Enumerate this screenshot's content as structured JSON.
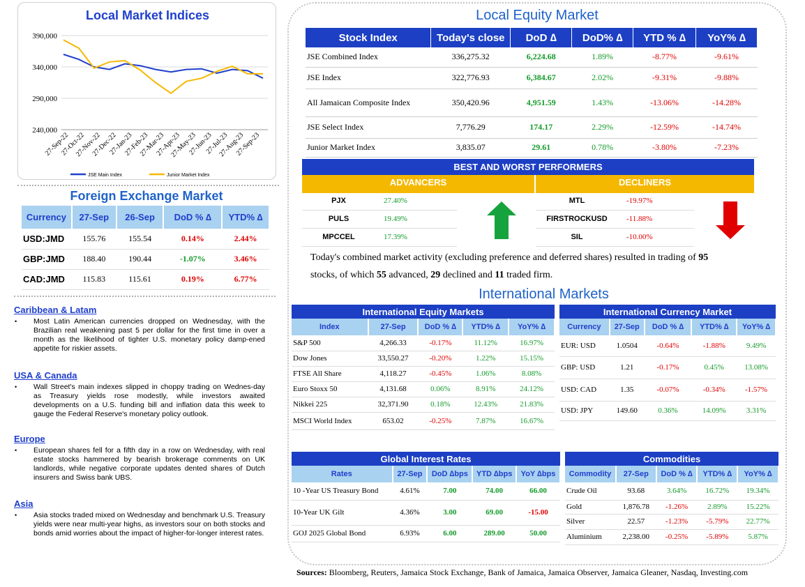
{
  "chart_data": {
    "type": "line",
    "title": "Local Market Indices",
    "x_ticks": [
      "27-Sep-22",
      "27-Oct-22",
      "27-Nov-22",
      "27-Dec-22",
      "27-Jan-23",
      "27-Feb-23",
      "27-Mar-23",
      "27-Apr-23",
      "27-May-23",
      "27-Jun-23",
      "27-Jul-23",
      "27-Aug-23",
      "27-Sep-23"
    ],
    "y_ticks": [
      "390,000",
      "340,000",
      "290,000",
      "240,000"
    ],
    "ylim": [
      240000,
      390000
    ],
    "legend_position": "bottom",
    "series": [
      {
        "name": "JSE Main Index",
        "color": "#1f3fcc",
        "values": [
          360000,
          352000,
          340000,
          336000,
          345000,
          342000,
          336000,
          332000,
          336000,
          337000,
          330000,
          336000,
          334000,
          322000
        ]
      },
      {
        "name": "Junior Market Index",
        "color": "#f5b800",
        "values": [
          383000,
          370000,
          338000,
          348000,
          350000,
          335000,
          315000,
          298000,
          317000,
          322000,
          333000,
          341000,
          329000,
          329000
        ]
      }
    ]
  },
  "fx": {
    "title": "Foreign Exchange Market",
    "headers": [
      "Currency",
      "27-Sep",
      "26-Sep",
      "DoD % ∆",
      "YTD% ∆"
    ],
    "rows": [
      [
        "USD:JMD",
        "155.76",
        "155.54",
        "0.14%",
        "2.44%"
      ],
      [
        "GBP:JMD",
        "188.40",
        "190.44",
        "-1.07%",
        "3.46%"
      ],
      [
        "CAD:JMD",
        "115.83",
        "115.61",
        "0.19%",
        "6.77%"
      ]
    ]
  },
  "news": [
    {
      "heading": "Caribbean & Latam",
      "text": "Most Latin American currencies dropped on Wednesday, with the Brazilian real weakening past 5 per dollar for the first time in over a month as the likelihood of tighter U.S. monetary policy damp-ened appetite for riskier assets."
    },
    {
      "heading": "USA & Canada",
      "text": "Wall Street's main indexes slipped in choppy trading on Wednes-day as Treasury yields rose modestly, while investors awaited developments on a U.S. funding bill and inflation data this week to gauge the Federal Reserve's monetary policy outlook."
    },
    {
      "heading": "Europe",
      "text": "European shares fell for a fifth day in a row on Wednesday, with real estate stocks hammered by bearish brokerage comments on UK landlords, while negative corporate updates dented shares of Dutch insurers and Swiss bank UBS."
    },
    {
      "heading": "Asia",
      "text": "Asia stocks traded mixed on Wednesday and benchmark U.S. Treasury yields were near multi-year highs, as investors sour on both stocks and bonds amid worries about the impact of higher-for-longer interest rates."
    }
  ],
  "equity": {
    "title": "Local Equity Market",
    "headers": [
      "Stock Index",
      "Today's close",
      "DoD  ∆",
      "DoD% ∆",
      "YTD % ∆",
      "YoY% ∆"
    ],
    "rows": [
      [
        "JSE Combined Index",
        "336,275.32",
        "6,224.68",
        "1.89%",
        "-8.77%",
        "-9.61%"
      ],
      [
        "JSE Index",
        "322,776.93",
        "6,384.67",
        "2.02%",
        "-9.31%",
        "-9.88%"
      ],
      [
        "All Jamaican Composite Index",
        "350,420.96",
        "4,951.59",
        "1.43%",
        "-13.06%",
        "-14.28%"
      ],
      [
        "JSE Select Index",
        "7,776.29",
        "174.17",
        "2.29%",
        "-12.59%",
        "-14.74%"
      ],
      [
        "Junior Market Index",
        "3,835.07",
        "29.61",
        "0.78%",
        "-3.80%",
        "-7.23%"
      ]
    ]
  },
  "performers": {
    "title": "BEST AND WORST PERFORMERS",
    "adv_label": "ADVANCERS",
    "dec_label": "DECLINERS",
    "advancers": [
      [
        "PJX",
        "27.40%"
      ],
      [
        "PULS",
        "19.49%"
      ],
      [
        "MPCCEL",
        "17.39%"
      ]
    ],
    "decliners": [
      [
        "MTL",
        "-19.97%"
      ],
      [
        "FIRSTROCKUSD",
        "-11.88%"
      ],
      [
        "SIL",
        "-10.00%"
      ]
    ]
  },
  "summary": {
    "p1": "Today's combined market activity (excluding preference and deferred shares) resulted in trading of ",
    "n_total": "95",
    "p2": "stocks, of which ",
    "n_adv": "55",
    "p3": " advanced, ",
    "n_dec": "29",
    "p4": " declined and ",
    "n_firm": "11",
    "p5": " traded firm."
  },
  "intl": {
    "title": "International Markets",
    "equity": {
      "title": "International Equity Markets",
      "headers": [
        "Index",
        "27-Sep",
        "DoD % ∆",
        "YTD% ∆",
        "YoY% ∆"
      ],
      "rows": [
        [
          "S&P 500",
          "4,266.33",
          "-0.17%",
          "11.12%",
          "16.97%"
        ],
        [
          "Dow Jones",
          "33,550.27",
          "-0.20%",
          "1.22%",
          "15.15%"
        ],
        [
          "FTSE All Share",
          "4,118.27",
          "-0.45%",
          "1.06%",
          "8.08%"
        ],
        [
          "Euro Stoxx 50",
          "4,131.68",
          "0.06%",
          "8.91%",
          "24.12%"
        ],
        [
          "Nikkei 225",
          "32,371.90",
          "0.18%",
          "12.43%",
          "21.83%"
        ],
        [
          "MSCI World Index",
          "653.02",
          "-0.25%",
          "7.87%",
          "16.67%"
        ]
      ]
    },
    "currency": {
      "title": "International Currency Market",
      "headers": [
        "Currency",
        "27-Sep",
        "DoD % ∆",
        "YTD% ∆",
        "YoY% ∆"
      ],
      "rows": [
        [
          "EUR: USD",
          "1.0504",
          "-0.64%",
          "-1.88%",
          "9.49%"
        ],
        [
          "GBP: USD",
          "1.21",
          "-0.17%",
          "0.45%",
          "13.08%"
        ],
        [
          "USD: CAD",
          "1.35",
          "-0.07%",
          "-0.34%",
          "-1.57%"
        ],
        [
          "USD: JPY",
          "149.60",
          "0.36%",
          "14.09%",
          "3.31%"
        ]
      ]
    },
    "rates": {
      "title": "Global Interest Rates",
      "headers": [
        "Rates",
        "27-Sep",
        "DoD ∆bps",
        "YTD ∆bps",
        "YoY ∆bps"
      ],
      "rows": [
        [
          "10 -Year US Treasury Bond",
          "4.61%",
          "7.00",
          "74.00",
          "66.00"
        ],
        [
          "10-Year UK Gilt",
          "4.36%",
          "3.00",
          "69.00",
          "-15.00"
        ],
        [
          "GOJ 2025 Global Bond",
          "6.93%",
          "6.00",
          "289.00",
          "50.00"
        ]
      ]
    },
    "commodities": {
      "title": "Commodities",
      "headers": [
        "Commodity",
        "27-Sep",
        "DoD % ∆",
        "YTD% ∆",
        "YoY% ∆"
      ],
      "rows": [
        [
          "Crude Oil",
          "93.68",
          "3.64%",
          "16.72%",
          "19.34%"
        ],
        [
          "Gold",
          "1,876.78",
          "-1.26%",
          "2.89%",
          "15.22%"
        ],
        [
          "Silver",
          "22.57",
          "-1.23%",
          "-5.79%",
          "22.77%"
        ],
        [
          "Aluminium",
          "2,238.00",
          "-0.25%",
          "-5.89%",
          "5.87%"
        ]
      ]
    }
  },
  "sources": {
    "label": "Sources:",
    "text": " Bloomberg, Reuters, Jamaica Stock Exchange, Bank of Jamaica, Jamaica Observer, Jamaica Gleaner, Nasdaq, Investing.com"
  },
  "colors": {
    "negative": "#e00000",
    "positive": "#139a2a",
    "header_blue": "#1c3fc4",
    "header_light": "#a9d1f0",
    "performers_gold": "#f5b800"
  },
  "icons": [
    "green-up-arrow",
    "red-down-arrow"
  ]
}
